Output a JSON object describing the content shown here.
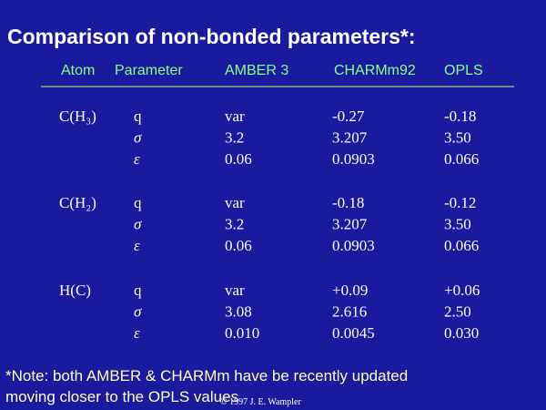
{
  "title": "Comparison of non-bonded parameters*:",
  "header": [
    "Atom",
    "Parameter",
    "AMBER 3",
    "CHARMm92",
    "OPLS"
  ],
  "groups": [
    {
      "atom": "C(H₃)",
      "rows": [
        [
          "q",
          "var",
          "-0.27",
          "-0.18"
        ],
        [
          "σ",
          "3.2",
          "3.207",
          "3.50"
        ],
        [
          "ε",
          "0.06",
          "0.0903",
          "0.066"
        ]
      ]
    },
    {
      "atom": "C(H₂)",
      "rows": [
        [
          "q",
          "var",
          "-0.18",
          "-0.12"
        ],
        [
          "σ",
          "3.2",
          "3.207",
          "3.50"
        ],
        [
          "ε",
          "0.06",
          "0.0903",
          "0.066"
        ]
      ]
    },
    {
      "atom": "H(C)",
      "rows": [
        [
          "q",
          "var",
          "+0.09",
          "+0.06"
        ],
        [
          "σ",
          "3.08",
          "2.616",
          "2.50"
        ],
        [
          "ε",
          "0.010",
          "0.0045",
          "0.030"
        ]
      ]
    }
  ],
  "note": [
    "*Note: both AMBER & CHARMm have be recently updated",
    "moving closer to the OPLS values"
  ],
  "copyright": "© 1997 J. E. Wampler"
}
